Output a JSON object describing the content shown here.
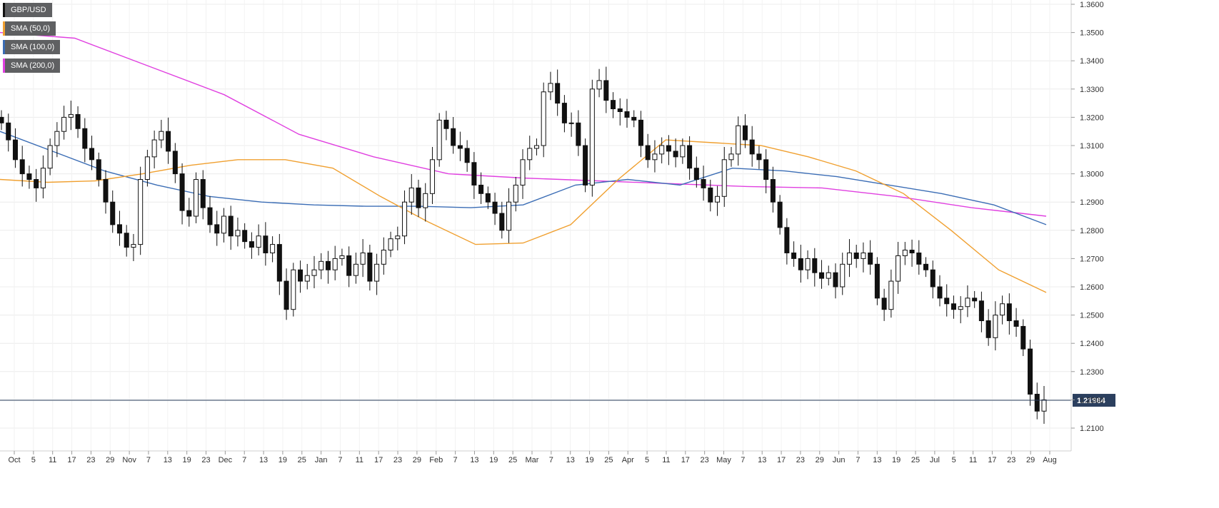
{
  "chart_data": {
    "type": "candlestick",
    "title": "GBP/USD",
    "legend": [
      {
        "label": "GBP/USD",
        "color": "#111111"
      },
      {
        "label": "SMA (50,0)",
        "color": "#f0a030"
      },
      {
        "label": "SMA (100,0)",
        "color": "#3b6db5"
      },
      {
        "label": "SMA (200,0)",
        "color": "#e040e0"
      }
    ],
    "legend_position": "top-left",
    "ylim": [
      1.2,
      1.36
    ],
    "y_ticks": [
      "1.3600",
      "1.3500",
      "1.3400",
      "1.3300",
      "1.3200",
      "1.3100",
      "1.3000",
      "1.2900",
      "1.2800",
      "1.2700",
      "1.2600",
      "1.2500",
      "1.2400",
      "1.2300",
      "1.2200",
      "1.2100"
    ],
    "x_ticks": [
      "Oct",
      "5",
      "11",
      "17",
      "23",
      "29",
      "Nov",
      "7",
      "13",
      "19",
      "23",
      "Dec",
      "7",
      "13",
      "19",
      "25",
      "Jan",
      "7",
      "11",
      "17",
      "23",
      "29",
      "Feb",
      "7",
      "13",
      "19",
      "25",
      "Mar",
      "7",
      "13",
      "19",
      "25",
      "Apr",
      "5",
      "11",
      "17",
      "23",
      "May",
      "7",
      "13",
      "17",
      "23",
      "29",
      "Jun",
      "7",
      "13",
      "19",
      "25",
      "Jul",
      "5",
      "11",
      "17",
      "23",
      "29",
      "Aug"
    ],
    "last_price": 1.21984,
    "last_price_label": "1.21984",
    "grid": true,
    "candles_close": [
      1.318,
      1.312,
      1.305,
      1.3,
      1.298,
      1.295,
      1.302,
      1.31,
      1.315,
      1.32,
      1.321,
      1.316,
      1.309,
      1.305,
      1.298,
      1.29,
      1.282,
      1.279,
      1.274,
      1.275,
      1.298,
      1.306,
      1.312,
      1.315,
      1.308,
      1.3,
      1.287,
      1.285,
      1.298,
      1.288,
      1.282,
      1.279,
      1.285,
      1.278,
      1.28,
      1.276,
      1.274,
      1.278,
      1.272,
      1.275,
      1.262,
      1.252,
      1.266,
      1.262,
      1.264,
      1.266,
      1.269,
      1.266,
      1.27,
      1.271,
      1.264,
      1.268,
      1.272,
      1.262,
      1.268,
      1.273,
      1.277,
      1.278,
      1.29,
      1.295,
      1.288,
      1.293,
      1.305,
      1.319,
      1.316,
      1.31,
      1.309,
      1.304,
      1.296,
      1.293,
      1.29,
      1.286,
      1.28,
      1.29,
      1.296,
      1.305,
      1.309,
      1.31,
      1.329,
      1.332,
      1.325,
      1.318,
      1.318,
      1.31,
      1.296,
      1.33,
      1.333,
      1.326,
      1.323,
      1.322,
      1.32,
      1.319,
      1.31,
      1.305,
      1.307,
      1.31,
      1.308,
      1.306,
      1.31,
      1.302,
      1.298,
      1.295,
      1.29,
      1.292,
      1.305,
      1.307,
      1.317,
      1.312,
      1.307,
      1.305,
      1.298,
      1.29,
      1.281,
      1.272,
      1.27,
      1.266,
      1.27,
      1.265,
      1.263,
      1.265,
      1.26,
      1.268,
      1.272,
      1.27,
      1.272,
      1.268,
      1.256,
      1.252,
      1.262,
      1.271,
      1.273,
      1.272,
      1.268,
      1.266,
      1.26,
      1.256,
      1.254,
      1.252,
      1.253,
      1.256,
      1.255,
      1.248,
      1.242,
      1.25,
      1.254,
      1.248,
      1.246,
      1.238,
      1.222,
      1.216,
      1.22
    ],
    "sma50_y": [
      1.298,
      1.297,
      1.2975,
      1.3,
      1.303,
      1.305,
      1.305,
      1.302,
      1.292,
      1.283,
      1.275,
      1.2755,
      1.282,
      1.298,
      1.312,
      1.311,
      1.31,
      1.306,
      1.301,
      1.293,
      1.28,
      1.266,
      1.258
    ],
    "sma100_y": [
      1.315,
      1.308,
      1.301,
      1.296,
      1.292,
      1.29,
      1.289,
      1.2885,
      1.2885,
      1.288,
      1.289,
      1.296,
      1.298,
      1.296,
      1.302,
      1.301,
      1.299,
      1.296,
      1.293,
      1.289,
      1.282
    ],
    "sma200_y": [
      1.35,
      1.348,
      1.338,
      1.328,
      1.314,
      1.306,
      1.3,
      1.2985,
      1.2975,
      1.2965,
      1.2955,
      1.295,
      1.292,
      1.288,
      1.285
    ]
  }
}
